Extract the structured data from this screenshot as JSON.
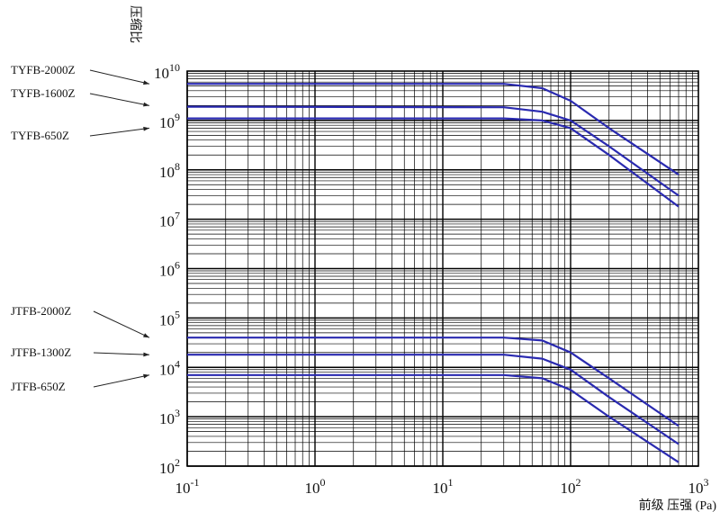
{
  "chart_data": {
    "type": "line",
    "ylabel": "压缩比",
    "xlabel": "前级 压强 (Pa)",
    "x_scale": "log",
    "y_scale": "log",
    "xlim": [
      0.1,
      1000
    ],
    "ylim": [
      100,
      10000000000
    ],
    "grid": true,
    "x_ticks": [
      {
        "base": "10",
        "exp": "-1"
      },
      {
        "base": "10",
        "exp": "0"
      },
      {
        "base": "10",
        "exp": "1"
      },
      {
        "base": "10",
        "exp": "2"
      },
      {
        "base": "10",
        "exp": "3"
      }
    ],
    "y_ticks": [
      {
        "base": "10",
        "exp": "2"
      },
      {
        "base": "10",
        "exp": "3"
      },
      {
        "base": "10",
        "exp": "4"
      },
      {
        "base": "10",
        "exp": "5"
      },
      {
        "base": "10",
        "exp": "6"
      },
      {
        "base": "10",
        "exp": "7"
      },
      {
        "base": "10",
        "exp": "8"
      },
      {
        "base": "10",
        "exp": "9"
      },
      {
        "base": "10",
        "exp": "10"
      }
    ],
    "line_color": "#2a2ab0",
    "series": [
      {
        "name": "TYFB-2000Z",
        "label_y": 5500000000,
        "x": [
          0.1,
          30,
          60,
          100,
          200,
          700
        ],
        "y": [
          5500000000,
          5500000000,
          4500000000,
          2500000000,
          700000000,
          80000000
        ]
      },
      {
        "name": "TYFB-1600Z",
        "label_y": 2000000000,
        "x": [
          0.1,
          30,
          60,
          100,
          200,
          700
        ],
        "y": [
          1900000000,
          1850000000,
          1500000000,
          1000000000,
          300000000,
          30000000
        ]
      },
      {
        "name": "TYFB-650Z",
        "label_y": 700000000,
        "x": [
          0.1,
          30,
          60,
          100,
          200,
          700
        ],
        "y": [
          1100000000,
          1100000000,
          1000000000,
          700000000,
          200000000,
          18000000
        ]
      },
      {
        "name": "JTFB-2000Z",
        "label_y": 40000,
        "x": [
          0.1,
          30,
          60,
          100,
          200,
          700
        ],
        "y": [
          40000,
          40000,
          35000,
          20000,
          6000,
          650
        ]
      },
      {
        "name": "JTFB-1300Z",
        "label_y": 18000,
        "x": [
          0.1,
          30,
          60,
          100,
          200,
          700
        ],
        "y": [
          18000,
          18000,
          15000,
          9000,
          2500,
          280
        ]
      },
      {
        "name": "JTFB-650Z",
        "label_y": 7000,
        "x": [
          0.1,
          30,
          60,
          100,
          200,
          700
        ],
        "y": [
          7000,
          7000,
          6000,
          3500,
          1000,
          120
        ]
      }
    ]
  }
}
